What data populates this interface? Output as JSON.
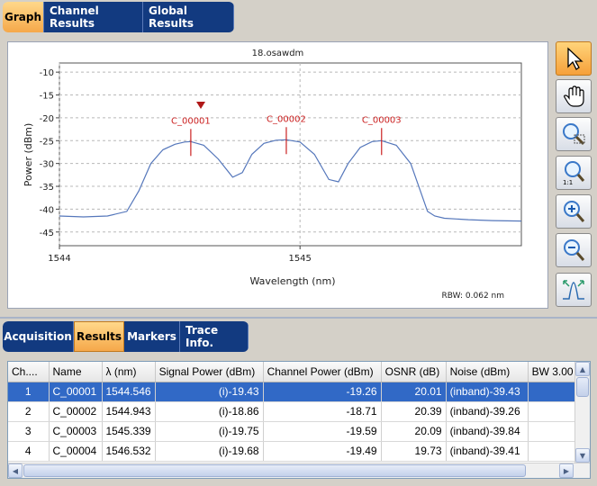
{
  "top_tabs": [
    "Graph",
    "Channel Results",
    "Global Results"
  ],
  "graph": {
    "title": "18.osawdm",
    "ylabel": "Power (dBm)",
    "xlabel": "Wavelength (nm)",
    "rbw": "RBW: 0.062 nm",
    "yticks": [
      "-10",
      "-15",
      "-20",
      "-25",
      "-30",
      "-35",
      "-40",
      "-45"
    ],
    "xticks": [
      "1544",
      "1545"
    ],
    "markers": [
      "C_00001",
      "C_00002",
      "C_00003"
    ]
  },
  "chart_data": {
    "type": "line",
    "title": "18.osawdm",
    "xlabel": "Wavelength (nm)",
    "ylabel": "Power (dBm)",
    "xlim": [
      1544.0,
      1545.92
    ],
    "ylim": [
      -48,
      -8
    ],
    "grid": true,
    "x": [
      1544.0,
      1544.1,
      1544.2,
      1544.28,
      1544.33,
      1544.38,
      1544.43,
      1544.48,
      1544.52,
      1544.546,
      1544.6,
      1544.66,
      1544.72,
      1544.76,
      1544.8,
      1544.85,
      1544.9,
      1544.943,
      1545.0,
      1545.06,
      1545.12,
      1545.16,
      1545.2,
      1545.25,
      1545.3,
      1545.339,
      1545.4,
      1545.46,
      1545.5,
      1545.53,
      1545.56,
      1545.6,
      1545.7,
      1545.8,
      1545.92
    ],
    "y": [
      -41.5,
      -41.7,
      -41.5,
      -40.5,
      -36.0,
      -30.0,
      -27.0,
      -25.8,
      -25.3,
      -25.2,
      -26.0,
      -29.0,
      -33.0,
      -32.0,
      -28.0,
      -25.6,
      -24.9,
      -24.8,
      -25.3,
      -28.0,
      -33.5,
      -34.0,
      -30.0,
      -26.5,
      -25.2,
      -25.0,
      -26.0,
      -30.0,
      -36.0,
      -40.5,
      -41.5,
      -42.0,
      -42.3,
      -42.5,
      -42.6
    ],
    "annotations": [
      {
        "label": "C_00001",
        "x": 1544.546,
        "y": -25.2
      },
      {
        "label": "C_00002",
        "x": 1544.943,
        "y": -24.8
      },
      {
        "label": "C_00003",
        "x": 1545.339,
        "y": -25.0
      }
    ]
  },
  "tools": [
    "pointer-icon",
    "hand-pan-icon",
    "zoom-area-icon",
    "zoom-1to1-icon",
    "zoom-in-icon",
    "zoom-out-icon",
    "fit-peak-icon"
  ],
  "bottom_tabs": [
    "Acquisition",
    "Results",
    "Markers",
    "Trace Info."
  ],
  "results": {
    "headers": [
      "Ch....",
      "Name",
      "λ (nm)",
      "Signal Power (dBm)",
      "Channel Power (dBm)",
      "OSNR (dB)",
      "Noise (dBm)",
      "BW 3.00"
    ],
    "rows": [
      [
        "1",
        "C_00001",
        "1544.546",
        "(i)-19.43",
        "-19.26",
        "20.01",
        "(inband)-39.43",
        ""
      ],
      [
        "2",
        "C_00002",
        "1544.943",
        "(i)-18.86",
        "-18.71",
        "20.39",
        "(inband)-39.26",
        ""
      ],
      [
        "3",
        "C_00003",
        "1545.339",
        "(i)-19.75",
        "-19.59",
        "20.09",
        "(inband)-39.84",
        ""
      ],
      [
        "4",
        "C_00004",
        "1546.532",
        "(i)-19.68",
        "-19.49",
        "19.73",
        "(inband)-39.41",
        ""
      ]
    ]
  },
  "colors": {
    "tab_blue": "#123a80",
    "tab_active": "#f5a84a",
    "trace": "#5577bb",
    "marker": "#cc2222",
    "selection": "#3169c6"
  }
}
